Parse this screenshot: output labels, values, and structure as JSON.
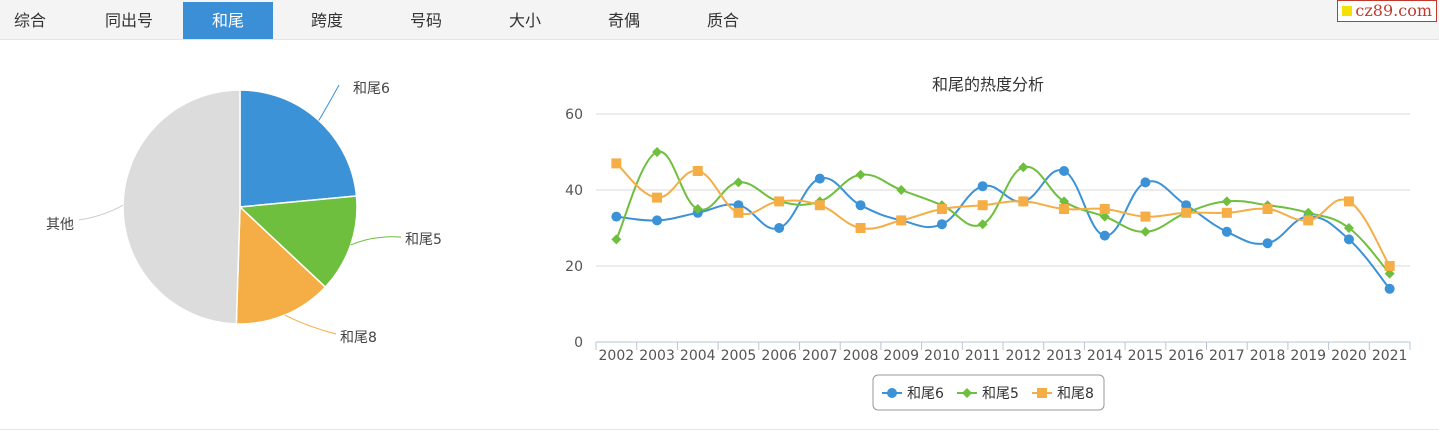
{
  "tabs": [
    {
      "label": "综合",
      "active": false
    },
    {
      "label": "同出号",
      "active": false
    },
    {
      "label": "和尾",
      "active": true
    },
    {
      "label": "跨度",
      "active": false
    },
    {
      "label": "号码",
      "active": false
    },
    {
      "label": "大小",
      "active": false
    },
    {
      "label": "奇偶",
      "active": false
    },
    {
      "label": "质合",
      "active": false
    }
  ],
  "logo": {
    "text": "cz89.com"
  },
  "colors": {
    "series1": "#3b92d6",
    "series2": "#6dbf3d",
    "series3": "#f5ad46",
    "other": "#dcdcdc",
    "active_tab": "#3b8fd6"
  },
  "chart_data": [
    {
      "type": "pie",
      "slices": [
        {
          "label": "和尾6",
          "value": 23.5
        },
        {
          "label": "和尾5",
          "value": 13.5
        },
        {
          "label": "和尾8",
          "value": 13.5
        },
        {
          "label": "其他",
          "value": 49.5
        }
      ]
    },
    {
      "type": "line",
      "title": "和尾的热度分析",
      "categories": [
        "2002",
        "2003",
        "2004",
        "2005",
        "2006",
        "2007",
        "2008",
        "2009",
        "2010",
        "2011",
        "2012",
        "2013",
        "2014",
        "2015",
        "2016",
        "2017",
        "2018",
        "2019",
        "2020",
        "2021"
      ],
      "ylim": [
        0,
        60
      ],
      "yticks": [
        0,
        20,
        40,
        60
      ],
      "grid": true,
      "legend_position": "bottom",
      "series": [
        {
          "name": "和尾6",
          "marker": "circle",
          "values": [
            33,
            32,
            34,
            36,
            30,
            43,
            36,
            32,
            31,
            41,
            37,
            45,
            28,
            42,
            36,
            29,
            26,
            33,
            27,
            14
          ]
        },
        {
          "name": "和尾5",
          "marker": "diamond",
          "values": [
            27,
            50,
            35,
            42,
            37,
            37,
            44,
            40,
            36,
            31,
            46,
            37,
            33,
            29,
            34,
            37,
            36,
            34,
            30,
            18
          ]
        },
        {
          "name": "和尾8",
          "marker": "square",
          "values": [
            47,
            38,
            45,
            34,
            37,
            36,
            30,
            32,
            35,
            36,
            37,
            35,
            35,
            33,
            34,
            34,
            35,
            32,
            37,
            20
          ]
        }
      ]
    }
  ]
}
